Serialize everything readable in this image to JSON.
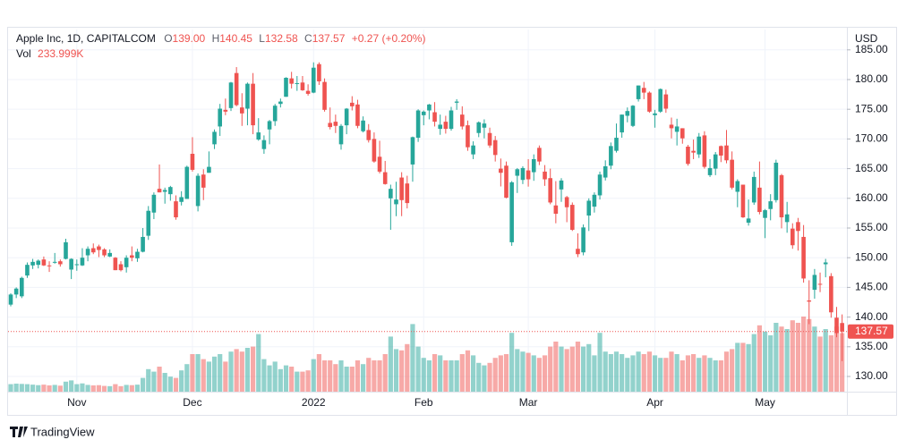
{
  "header": {
    "symbol": "Apple Inc, 1D, CAPITALCOM",
    "open_label": "O",
    "open": "139.00",
    "high_label": "H",
    "high": "140.45",
    "low_label": "L",
    "low": "132.58",
    "close_label": "C",
    "close": "137.57",
    "change": "+0.27 (+0.20%)",
    "volume_label": "Vol",
    "volume": "233.999K"
  },
  "chart_data": {
    "type": "candlestick",
    "currency": "USD",
    "categories": [
      null,
      null,
      null,
      null,
      null,
      null,
      null,
      null,
      null,
      null,
      null,
      null,
      "Nov",
      null,
      null,
      null,
      null,
      null,
      null,
      null,
      null,
      null,
      null,
      null,
      null,
      null,
      null,
      null,
      null,
      null,
      null,
      null,
      null,
      "Dec",
      null,
      null,
      null,
      null,
      null,
      null,
      null,
      null,
      null,
      null,
      null,
      null,
      null,
      null,
      null,
      null,
      null,
      null,
      null,
      null,
      null,
      "2022",
      null,
      null,
      null,
      null,
      null,
      null,
      null,
      null,
      null,
      null,
      null,
      null,
      null,
      null,
      null,
      null,
      null,
      null,
      null,
      "Feb",
      null,
      null,
      null,
      null,
      null,
      null,
      null,
      null,
      null,
      null,
      null,
      null,
      null,
      null,
      null,
      null,
      null,
      null,
      "Mar",
      null,
      null,
      null,
      null,
      null,
      null,
      null,
      null,
      null,
      null,
      null,
      null,
      null,
      null,
      null,
      null,
      null,
      null,
      null,
      null,
      null,
      null,
      "Apr",
      null,
      null,
      null,
      null,
      null,
      null,
      null,
      null,
      null,
      null,
      null,
      null,
      null,
      null,
      null,
      null,
      null,
      null,
      null,
      "May",
      null,
      null,
      null,
      null,
      null,
      null,
      null,
      null,
      null,
      null,
      null,
      null,
      null,
      null
    ],
    "open": [
      142.1,
      143.8,
      143.5,
      147.0,
      148.7,
      148.8,
      149.7,
      148.7,
      149.3,
      149.4,
      149.8,
      148.0,
      148.9,
      148.7,
      150.4,
      151.6,
      151.9,
      151.4,
      150.2,
      150.0,
      148.9,
      148.4,
      150.4,
      149.9,
      151.0,
      153.7,
      157.6,
      161.6,
      161.1,
      160.7,
      159.5,
      159.4,
      159.9,
      167.5,
      158.7,
      164.0,
      164.3,
      169.1,
      172.1,
      174.9,
      175.2,
      181.1,
      175.3,
      175.1,
      179.3,
      169.9,
      168.3,
      171.6,
      173.0,
      175.9,
      177.1,
      180.2,
      179.3,
      179.5,
      178.1,
      177.8,
      182.6,
      179.6,
      172.7,
      172.9,
      169.1,
      172.3,
      176.1,
      175.8,
      171.3,
      171.5,
      170.0,
      167.0,
      164.4,
      160.0,
      159.0,
      163.5,
      162.5,
      165.7,
      170.2,
      174.0,
      174.8,
      174.5,
      171.7,
      172.9,
      171.7,
      176.1,
      174.1,
      172.3,
      167.4,
      171.0,
      171.9,
      171.0,
      169.8,
      165.0,
      165.5,
      152.6,
      163.8,
      163.1,
      164.7,
      164.4,
      168.5,
      164.5,
      163.4,
      158.8,
      161.5,
      160.2,
      158.9,
      151.5,
      150.9,
      157.1,
      158.6,
      160.5,
      163.5,
      165.5,
      168.0,
      171.1,
      173.9,
      172.2,
      176.7,
      178.6,
      177.8,
      174.0,
      174.6,
      177.5,
      172.4,
      171.2,
      171.8,
      168.7,
      168.0,
      167.4,
      170.6,
      163.9,
      165.0,
      168.8,
      168.9,
      166.5,
      161.1,
      162.3,
      155.9,
      159.3,
      161.8,
      156.7,
      158.2,
      159.7,
      163.9,
      156.0,
      154.9,
      156.0,
      153.5,
      142.8,
      144.6,
      145.6,
      148.9,
      146.9,
      139.9,
      139.0
    ],
    "high": [
      144.0,
      145.0,
      146.8,
      149.2,
      149.8,
      149.7,
      150.2,
      149.4,
      150.8,
      149.7,
      153.2,
      149.9,
      149.7,
      151.6,
      151.9,
      152.4,
      152.2,
      151.6,
      151.4,
      150.1,
      149.4,
      150.4,
      151.9,
      151.5,
      155.0,
      158.7,
      161.0,
      165.7,
      161.8,
      162.1,
      160.5,
      161.2,
      165.5,
      170.3,
      164.2,
      164.9,
      167.9,
      171.6,
      175.9,
      176.8,
      179.6,
      182.1,
      177.7,
      179.5,
      181.1,
      173.5,
      170.6,
      173.2,
      175.9,
      176.8,
      180.4,
      181.3,
      180.6,
      180.6,
      179.2,
      182.9,
      182.9,
      180.2,
      175.3,
      174.1,
      172.5,
      175.2,
      177.2,
      176.6,
      173.8,
      172.5,
      171.1,
      169.7,
      166.3,
      162.3,
      162.8,
      164.4,
      163.8,
      170.4,
      175.0,
      174.8,
      175.9,
      176.2,
      174.1,
      173.9,
      175.4,
      176.7,
      175.5,
      173.1,
      169.6,
      172.95,
      173.3,
      171.9,
      170.5,
      166.7,
      166.2,
      162.9,
      165.1,
      165.4,
      166.6,
      167.4,
      168.9,
      165.6,
      165.0,
      162.9,
      163.4,
      160.4,
      159.3,
      154.1,
      155.6,
      160.0,
      161.0,
      164.5,
      166.4,
      169.4,
      172.6,
      174.1,
      175.3,
      175.7,
      179.0,
      179.6,
      178.0,
      174.9,
      178.5,
      178.3,
      173.6,
      173.4,
      171.8,
      169.0,
      169.9,
      171.0,
      171.3,
      166.6,
      167.8,
      168.9,
      171.5,
      167.9,
      163.2,
      162.3,
      159.8,
      164.5,
      166.2,
      158.2,
      160.7,
      166.5,
      164.1,
      159.4,
      155.8,
      156.7,
      155.5,
      146.2,
      148.1,
      147.5,
      149.8,
      147.4,
      141.7,
      140.45
    ],
    "low": [
      141.8,
      143.2,
      143.2,
      146.6,
      148.1,
      148.2,
      148.6,
      147.6,
      149.0,
      148.5,
      149.7,
      146.4,
      147.8,
      148.6,
      149.4,
      150.6,
      150.1,
      150.1,
      150.1,
      147.9,
      147.7,
      147.5,
      149.4,
      149.3,
      150.9,
      153.0,
      156.5,
      161.0,
      159.1,
      159.6,
      156.4,
      158.8,
      159.9,
      164.5,
      157.8,
      159.7,
      164.3,
      168.3,
      170.5,
      174.0,
      174.7,
      175.5,
      172.2,
      172.3,
      170.8,
      169.7,
      167.5,
      169.1,
      172.2,
      175.3,
      177.1,
      178.5,
      178.1,
      178.1,
      177.3,
      177.7,
      179.1,
      174.6,
      171.6,
      171.0,
      168.2,
      170.8,
      174.8,
      171.8,
      171.1,
      169.4,
      166.0,
      164.2,
      162.3,
      154.7,
      157.0,
      157.0,
      158.3,
      162.8,
      169.5,
      172.3,
      173.3,
      172.1,
      170.7,
      170.9,
      171.4,
      174.9,
      171.6,
      168.0,
      166.6,
      170.3,
      170.1,
      168.5,
      166.2,
      162.0,
      160.0,
      152.0,
      160.9,
      162.4,
      161.97,
      162.95,
      165.6,
      162.1,
      159.0,
      155.8,
      159.4,
      155.98,
      154.5,
      150.1,
      150.4,
      154.5,
      157.6,
      159.8,
      163.0,
      164.9,
      167.7,
      170.2,
      172.8,
      172.0,
      176.3,
      176.7,
      174.4,
      171.9,
      174.4,
      174.4,
      170.1,
      168.9,
      169.2,
      165.5,
      166.6,
      166.8,
      165.0,
      163.6,
      163.9,
      166.1,
      165.9,
      161.5,
      158.5,
      156.7,
      155.4,
      158.9,
      157.3,
      153.3,
      156.3,
      159.3,
      154.95,
      154.2,
      151.5,
      151.2,
      145.8,
      138.8,
      143.1,
      144.2,
      146.7,
      139.9,
      136.6,
      132.58
    ],
    "close": [
      143.8,
      144.8,
      146.6,
      148.8,
      149.3,
      149.5,
      148.7,
      148.6,
      149.3,
      148.9,
      152.6,
      149.8,
      148.9,
      150.0,
      151.5,
      150.9,
      151.3,
      150.4,
      150.8,
      147.9,
      147.9,
      150.0,
      150.0,
      151.0,
      153.5,
      157.9,
      160.6,
      161.0,
      161.4,
      161.9,
      156.8,
      160.2,
      165.3,
      164.8,
      163.8,
      161.8,
      165.3,
      171.2,
      175.1,
      174.6,
      179.5,
      175.7,
      174.3,
      179.3,
      172.3,
      171.1,
      169.8,
      173.0,
      175.6,
      176.3,
      180.3,
      179.3,
      179.4,
      178.2,
      177.6,
      182.0,
      179.7,
      174.9,
      172.0,
      172.2,
      172.2,
      175.1,
      175.5,
      172.2,
      173.1,
      169.8,
      166.2,
      164.5,
      162.4,
      161.6,
      159.8,
      159.7,
      159.2,
      170.3,
      174.8,
      174.6,
      175.8,
      172.9,
      172.4,
      171.7,
      174.8,
      176.3,
      172.1,
      168.6,
      168.9,
      172.8,
      172.6,
      168.9,
      167.3,
      164.3,
      160.1,
      162.7,
      164.9,
      165.1,
      163.2,
      166.6,
      166.2,
      163.2,
      159.3,
      157.4,
      163.0,
      158.5,
      154.7,
      150.6,
      155.1,
      159.6,
      160.6,
      164.0,
      165.4,
      168.8,
      170.2,
      174.1,
      174.7,
      175.6,
      179.0,
      177.8,
      174.6,
      174.3,
      178.4,
      175.1,
      171.8,
      172.1,
      170.1,
      165.8,
      167.7,
      170.4,
      165.3,
      165.1,
      167.4,
      167.2,
      166.4,
      161.8,
      162.9,
      156.8,
      156.6,
      163.6,
      157.7,
      158.0,
      159.5,
      166.0,
      156.8,
      157.3,
      152.1,
      154.5,
      146.5,
      142.6,
      147.1,
      145.5,
      149.2,
      140.8,
      137.3,
      137.57
    ],
    "volume": [
      30,
      32,
      31,
      30,
      28,
      26,
      28,
      25,
      27,
      24,
      40,
      45,
      30,
      33,
      27,
      25,
      26,
      23,
      22,
      30,
      22,
      27,
      26,
      28,
      55,
      90,
      80,
      100,
      75,
      60,
      55,
      85,
      110,
      150,
      150,
      130,
      120,
      140,
      150,
      120,
      160,
      170,
      160,
      175,
      180,
      230,
      130,
      105,
      120,
      90,
      105,
      100,
      80,
      80,
      85,
      130,
      150,
      125,
      125,
      110,
      125,
      100,
      100,
      125,
      110,
      135,
      125,
      125,
      150,
      220,
      170,
      165,
      190,
      270,
      180,
      135,
      125,
      150,
      145,
      125,
      125,
      125,
      150,
      165,
      145,
      115,
      105,
      115,
      135,
      145,
      150,
      235,
      170,
      160,
      155,
      145,
      135,
      145,
      180,
      200,
      180,
      170,
      180,
      200,
      180,
      190,
      145,
      235,
      160,
      150,
      160,
      150,
      135,
      145,
      160,
      150,
      160,
      145,
      135,
      135,
      160,
      150,
      125,
      145,
      150,
      135,
      145,
      135,
      125,
      125,
      160,
      170,
      195,
      195,
      190,
      230,
      265,
      240,
      225,
      275,
      260,
      250,
      285,
      275,
      300,
      290,
      260,
      220,
      250,
      225,
      260,
      233.999
    ],
    "up_color": "#26a69a",
    "down_color": "#ef5350",
    "ylim": [
      127.44,
      188.43
    ],
    "yticks": [
      {
        "value": 130,
        "label": "130.00"
      },
      {
        "value": 135,
        "label": "135.00"
      },
      {
        "value": 140,
        "label": "140.00"
      },
      {
        "value": 145,
        "label": "145.00"
      },
      {
        "value": 150,
        "label": "150.00"
      },
      {
        "value": 155,
        "label": "155.00"
      },
      {
        "value": 160,
        "label": "160.00"
      },
      {
        "value": 165,
        "label": "165.00"
      },
      {
        "value": 170,
        "label": "170.00"
      },
      {
        "value": 175,
        "label": "175.00"
      },
      {
        "value": 180,
        "label": "180.00"
      },
      {
        "value": 185,
        "label": "185.00"
      }
    ],
    "last_price": 137.57,
    "grid": true
  },
  "watermark": "TradingView"
}
